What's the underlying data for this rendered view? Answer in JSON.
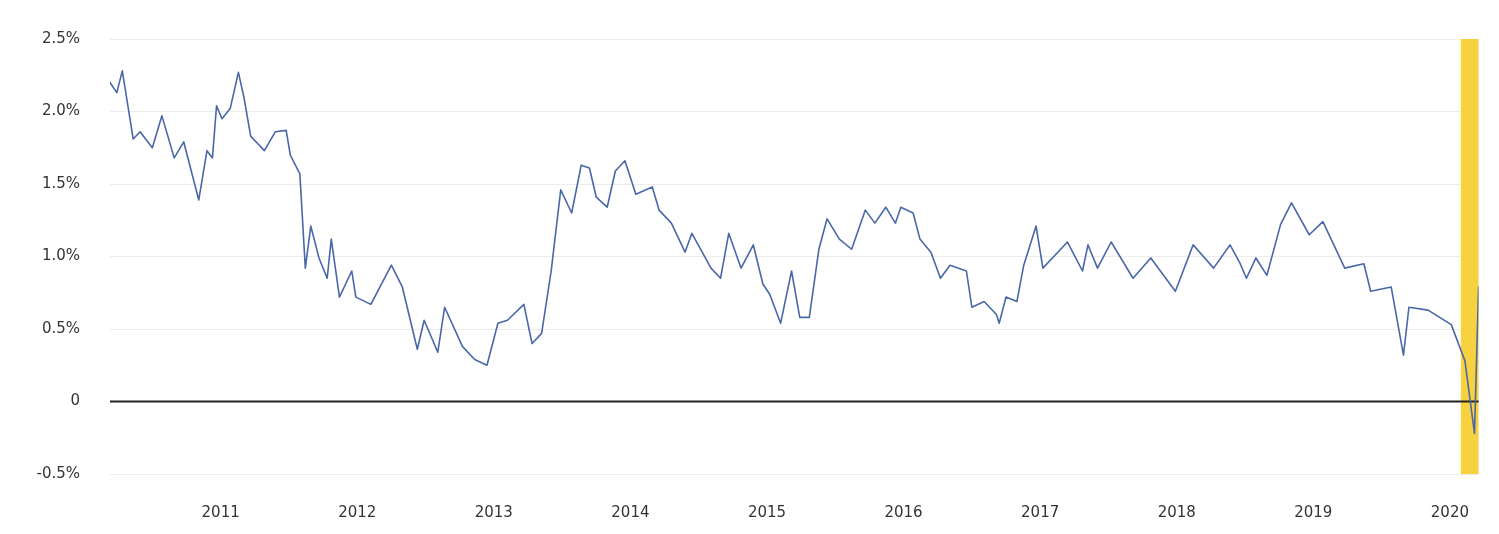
{
  "chart_data": {
    "type": "line",
    "x": [
      2010.19,
      2010.24,
      2010.28,
      2010.36,
      2010.41,
      2010.5,
      2010.57,
      2010.66,
      2010.73,
      2010.84,
      2010.9,
      2010.94,
      2010.97,
      2011.01,
      2011.07,
      2011.13,
      2011.17,
      2011.22,
      2011.32,
      2011.4,
      2011.48,
      2011.51,
      2011.58,
      2011.62,
      2011.66,
      2011.72,
      2011.78,
      2011.81,
      2011.87,
      2011.96,
      2011.99,
      2012.1,
      2012.25,
      2012.33,
      2012.44,
      2012.49,
      2012.59,
      2012.64,
      2012.77,
      2012.86,
      2012.95,
      2013.03,
      2013.1,
      2013.22,
      2013.28,
      2013.35,
      2013.42,
      2013.49,
      2013.57,
      2013.64,
      2013.7,
      2013.75,
      2013.83,
      2013.89,
      2013.96,
      2014.04,
      2014.16,
      2014.21,
      2014.3,
      2014.4,
      2014.45,
      2014.59,
      2014.66,
      2014.72,
      2014.81,
      2014.9,
      2014.97,
      2015.02,
      2015.1,
      2015.18,
      2015.24,
      2015.31,
      2015.38,
      2015.44,
      2015.53,
      2015.62,
      2015.72,
      2015.79,
      2015.87,
      2015.94,
      2015.98,
      2016.07,
      2016.12,
      2016.2,
      2016.27,
      2016.34,
      2016.46,
      2016.5,
      2016.59,
      2016.68,
      2016.7,
      2016.75,
      2016.83,
      2016.88,
      2016.97,
      2017.02,
      2017.2,
      2017.31,
      2017.35,
      2017.42,
      2017.52,
      2017.68,
      2017.81,
      2017.99,
      2018.12,
      2018.27,
      2018.39,
      2018.46,
      2018.51,
      2018.58,
      2018.66,
      2018.76,
      2018.84,
      2018.97,
      2019.07,
      2019.23,
      2019.37,
      2019.42,
      2019.57,
      2019.66,
      2019.7,
      2019.84,
      2020.01,
      2020.11,
      2020.18,
      2020.21
    ],
    "series": [
      {
        "color": "#4a67a8",
        "values": [
          2.2,
          2.13,
          2.28,
          1.81,
          1.86,
          1.75,
          1.97,
          1.68,
          1.79,
          1.39,
          1.73,
          1.68,
          2.04,
          1.95,
          2.02,
          2.27,
          2.1,
          1.83,
          1.73,
          1.86,
          1.87,
          1.7,
          1.57,
          0.92,
          1.21,
          0.99,
          0.85,
          1.12,
          0.72,
          0.9,
          0.72,
          0.67,
          0.94,
          0.79,
          0.36,
          0.56,
          0.34,
          0.65,
          0.38,
          0.29,
          0.25,
          0.54,
          0.56,
          0.67,
          0.4,
          0.47,
          0.9,
          1.46,
          1.3,
          1.63,
          1.61,
          1.41,
          1.34,
          1.59,
          1.66,
          1.43,
          1.48,
          1.32,
          1.23,
          1.03,
          1.16,
          0.92,
          0.85,
          1.16,
          0.92,
          1.08,
          0.81,
          0.74,
          0.54,
          0.9,
          0.58,
          0.58,
          1.05,
          1.26,
          1.12,
          1.05,
          1.32,
          1.23,
          1.34,
          1.23,
          1.34,
          1.3,
          1.12,
          1.03,
          0.85,
          0.94,
          0.9,
          0.65,
          0.69,
          0.6,
          0.54,
          0.72,
          0.69,
          0.94,
          1.21,
          0.92,
          1.1,
          0.9,
          1.08,
          0.92,
          1.1,
          0.85,
          0.99,
          0.76,
          1.08,
          0.92,
          1.08,
          0.96,
          0.85,
          0.99,
          0.87,
          1.22,
          1.37,
          1.15,
          1.24,
          0.92,
          0.95,
          0.76,
          0.79,
          0.32,
          0.65,
          0.63,
          0.53,
          0.28,
          -0.22,
          0.79
        ]
      }
    ],
    "xlim": [
      2010.19,
      2020.21
    ],
    "xticks": [
      2011,
      2012,
      2013,
      2014,
      2015,
      2016,
      2017,
      2018,
      2019,
      2020
    ],
    "ylim": [
      -0.5,
      2.5
    ],
    "yticks": [
      {
        "value": -0.5,
        "label": "-0.5%"
      },
      {
        "value": 0,
        "label": "0"
      },
      {
        "value": 0.5,
        "label": "0.5%"
      },
      {
        "value": 1,
        "label": "1.0%"
      },
      {
        "value": 1.5,
        "label": "1.5%"
      },
      {
        "value": 2,
        "label": "2.0%"
      },
      {
        "value": 2.5,
        "label": "2.5%"
      }
    ],
    "ref_lines": [
      {
        "axis": "y",
        "value": 0,
        "color": "#222222"
      }
    ],
    "bands": [
      {
        "axis": "x",
        "from": 2020.08,
        "to": 2020.21,
        "color": "#f7d23e"
      }
    ],
    "grid": "y",
    "legend": false,
    "marker": "none",
    "line_style": "solid"
  }
}
